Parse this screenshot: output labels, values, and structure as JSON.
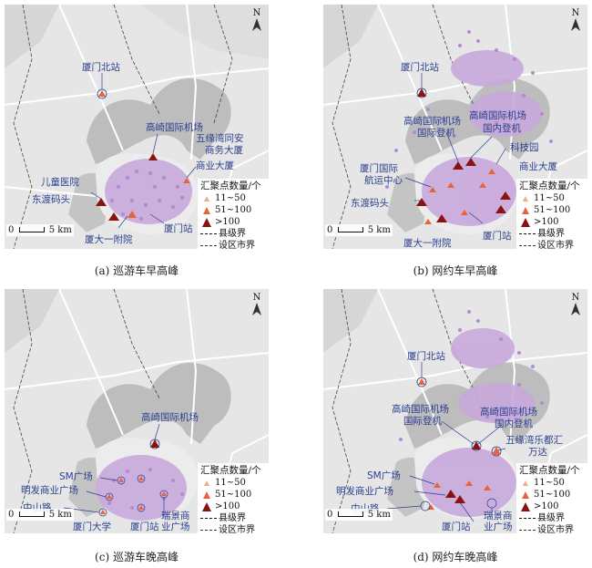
{
  "panels": [
    {
      "id": "a",
      "caption": "(a) 巡游车早高峰",
      "legend": {
        "title": "汇聚点数量/个",
        "items": [
          "11~50",
          "51~100",
          ">100"
        ],
        "county_boundary": "县级界",
        "city_boundary": "设区市界",
        "colors": [
          "#f4a98a",
          "#e8633a",
          "#8b1212"
        ]
      },
      "scale": {
        "zero": "0",
        "dist": "5 km"
      },
      "north": "N",
      "places": [
        "厦门北站",
        "高崎国际机场",
        "五缘湾同安",
        "商务大厦",
        "商业大厦",
        "儿童医院",
        "东渡码头",
        "厦大一附院",
        "厦门站"
      ]
    },
    {
      "id": "b",
      "caption": "(b) 网约车早高峰",
      "legend": {
        "title": "汇聚点数量/个",
        "items": [
          "11~50",
          "51~100",
          ">100"
        ],
        "county_boundary": "县级界",
        "city_boundary": "设区市界",
        "colors": [
          "#f4a98a",
          "#e8633a",
          "#8b1212"
        ]
      },
      "scale": {
        "zero": "0",
        "dist": "5 km"
      },
      "north": "N",
      "places": [
        "厦门北站",
        "高崎国际机场",
        "国际登机",
        "高崎国际机场",
        "国内登机",
        "科技园",
        "商业大厦",
        "厦门国际",
        "航运中心",
        "东渡码头",
        "厦大一附院",
        "厦门站"
      ]
    },
    {
      "id": "c",
      "caption": "(c) 巡游车晚高峰",
      "legend": {
        "title": "汇聚点数量/个",
        "items": [
          "11~50",
          "51~100",
          ">100"
        ],
        "county_boundary": "县级界",
        "city_boundary": "设区市界",
        "colors": [
          "#f4a98a",
          "#e8633a",
          "#8b1212"
        ]
      },
      "scale": {
        "zero": "0",
        "dist": "5 km"
      },
      "north": "N",
      "places": [
        "高崎国际机场",
        "SM广场",
        "明发商业广场",
        "中山路",
        "厦门大学",
        "厦门站",
        "瑞景商",
        "业广场"
      ]
    },
    {
      "id": "d",
      "caption": "(d) 网约车晚高峰",
      "legend": {
        "title": "汇聚点数量/个",
        "items": [
          "11~50",
          "51~100",
          ">100"
        ],
        "county_boundary": "县级界",
        "city_boundary": "设区市界",
        "colors": [
          "#f4a98a",
          "#e8633a",
          "#8b1212"
        ]
      },
      "scale": {
        "zero": "0",
        "dist": "5 km"
      },
      "north": "N",
      "places": [
        "厦门北站",
        "高崎国际机场",
        "国际登机",
        "高崎国际机场",
        "国内登机",
        "五缘湾乐都汇",
        "万达",
        "SM广场",
        "明发商业广场",
        "中山路",
        "厦门站",
        "瑞景商",
        "业广场"
      ]
    }
  ]
}
